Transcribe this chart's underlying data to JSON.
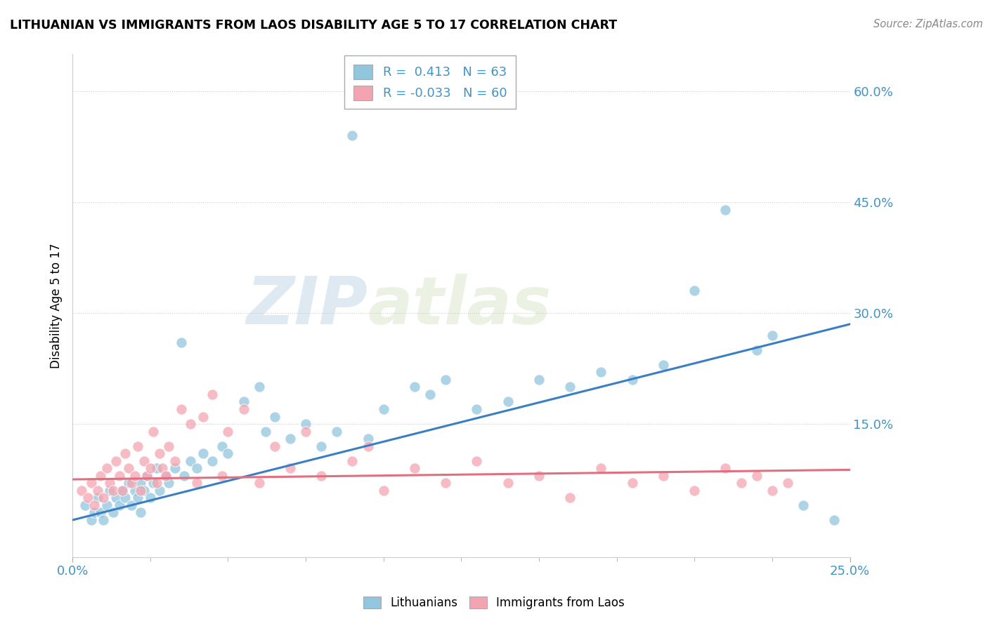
{
  "title": "LITHUANIAN VS IMMIGRANTS FROM LAOS DISABILITY AGE 5 TO 17 CORRELATION CHART",
  "source": "Source: ZipAtlas.com",
  "ylabel": "Disability Age 5 to 17",
  "ytick_vals": [
    0.15,
    0.3,
    0.45,
    0.6
  ],
  "ytick_labels": [
    "15.0%",
    "30.0%",
    "45.0%",
    "60.0%"
  ],
  "xmin": 0.0,
  "xmax": 0.25,
  "ymin": -0.03,
  "ymax": 0.65,
  "r_blue": 0.413,
  "n_blue": 63,
  "r_pink": -0.033,
  "n_pink": 60,
  "blue_color": "#92c5de",
  "pink_color": "#f4a4b0",
  "trend_blue": "#3a7fc1",
  "trend_pink": "#e07080",
  "blue_trend_x0": 0.0,
  "blue_trend_y0": 0.02,
  "blue_trend_x1": 0.25,
  "blue_trend_y1": 0.285,
  "pink_trend_x0": 0.0,
  "pink_trend_y0": 0.075,
  "pink_trend_x1": 0.25,
  "pink_trend_y1": 0.088,
  "blue_scatter_x": [
    0.004,
    0.006,
    0.007,
    0.008,
    0.009,
    0.01,
    0.011,
    0.012,
    0.013,
    0.014,
    0.015,
    0.016,
    0.017,
    0.018,
    0.019,
    0.02,
    0.021,
    0.022,
    0.022,
    0.023,
    0.024,
    0.025,
    0.026,
    0.027,
    0.028,
    0.03,
    0.031,
    0.033,
    0.035,
    0.036,
    0.038,
    0.04,
    0.042,
    0.045,
    0.048,
    0.05,
    0.055,
    0.06,
    0.062,
    0.065,
    0.07,
    0.075,
    0.08,
    0.085,
    0.09,
    0.095,
    0.1,
    0.11,
    0.115,
    0.12,
    0.13,
    0.14,
    0.15,
    0.16,
    0.17,
    0.18,
    0.19,
    0.2,
    0.21,
    0.22,
    0.225,
    0.235,
    0.245
  ],
  "blue_scatter_y": [
    0.04,
    0.02,
    0.03,
    0.05,
    0.03,
    0.02,
    0.04,
    0.06,
    0.03,
    0.05,
    0.04,
    0.06,
    0.05,
    0.07,
    0.04,
    0.06,
    0.05,
    0.07,
    0.03,
    0.06,
    0.08,
    0.05,
    0.07,
    0.09,
    0.06,
    0.08,
    0.07,
    0.09,
    0.26,
    0.08,
    0.1,
    0.09,
    0.11,
    0.1,
    0.12,
    0.11,
    0.18,
    0.2,
    0.14,
    0.16,
    0.13,
    0.15,
    0.12,
    0.14,
    0.54,
    0.13,
    0.17,
    0.2,
    0.19,
    0.21,
    0.17,
    0.18,
    0.21,
    0.2,
    0.22,
    0.21,
    0.23,
    0.33,
    0.44,
    0.25,
    0.27,
    0.04,
    0.02
  ],
  "pink_scatter_x": [
    0.003,
    0.005,
    0.006,
    0.007,
    0.008,
    0.009,
    0.01,
    0.011,
    0.012,
    0.013,
    0.014,
    0.015,
    0.016,
    0.017,
    0.018,
    0.019,
    0.02,
    0.021,
    0.022,
    0.023,
    0.024,
    0.025,
    0.026,
    0.027,
    0.028,
    0.029,
    0.03,
    0.031,
    0.033,
    0.035,
    0.038,
    0.04,
    0.042,
    0.045,
    0.048,
    0.05,
    0.055,
    0.06,
    0.065,
    0.07,
    0.075,
    0.08,
    0.09,
    0.095,
    0.1,
    0.11,
    0.12,
    0.13,
    0.14,
    0.15,
    0.16,
    0.17,
    0.18,
    0.19,
    0.2,
    0.21,
    0.215,
    0.22,
    0.225,
    0.23
  ],
  "pink_scatter_y": [
    0.06,
    0.05,
    0.07,
    0.04,
    0.06,
    0.08,
    0.05,
    0.09,
    0.07,
    0.06,
    0.1,
    0.08,
    0.06,
    0.11,
    0.09,
    0.07,
    0.08,
    0.12,
    0.06,
    0.1,
    0.08,
    0.09,
    0.14,
    0.07,
    0.11,
    0.09,
    0.08,
    0.12,
    0.1,
    0.17,
    0.15,
    0.07,
    0.16,
    0.19,
    0.08,
    0.14,
    0.17,
    0.07,
    0.12,
    0.09,
    0.14,
    0.08,
    0.1,
    0.12,
    0.06,
    0.09,
    0.07,
    0.1,
    0.07,
    0.08,
    0.05,
    0.09,
    0.07,
    0.08,
    0.06,
    0.09,
    0.07,
    0.08,
    0.06,
    0.07
  ]
}
